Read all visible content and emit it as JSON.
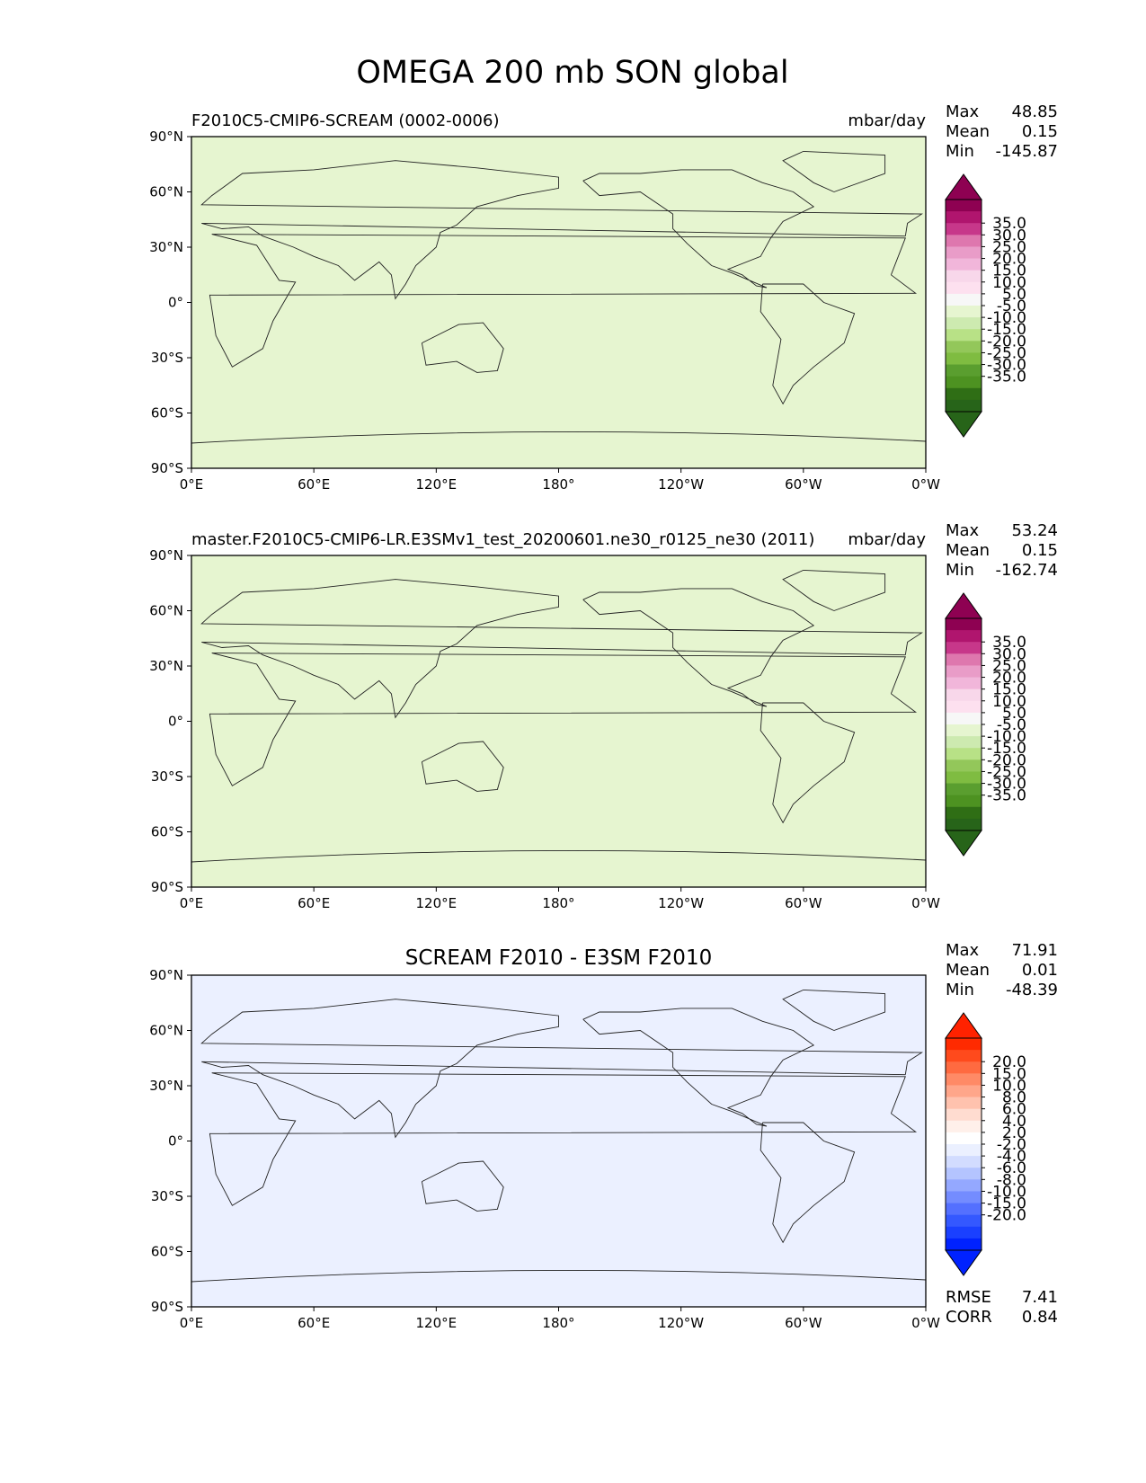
{
  "figure": {
    "title": "OMEGA 200 mb SON global"
  },
  "common": {
    "lon_ticks": [
      "0°E",
      "60°E",
      "120°E",
      "180°",
      "120°W",
      "60°W",
      "0°W"
    ],
    "lat_ticks": [
      "90°N",
      "60°N",
      "30°N",
      "0°",
      "30°S",
      "60°S",
      "90°S"
    ],
    "stat_labels": {
      "max": "Max",
      "mean": "Mean",
      "min": "Min",
      "rmse": "RMSE",
      "corr": "CORR"
    }
  },
  "panels": [
    {
      "id": "test",
      "left_title": "F2010C5-CMIP6-SCREAM (0002-0006)",
      "center_title": "",
      "units": "mbar/day",
      "stats": {
        "max": "48.85",
        "mean": "0.15",
        "min": "-145.87"
      },
      "colorbar": {
        "labels": [
          "35.0",
          "30.0",
          "25.0",
          "20.0",
          "15.0",
          "10.0",
          "5.0",
          "-5.0",
          "-10.0",
          "-15.0",
          "-20.0",
          "-25.0",
          "-30.0",
          "-35.0"
        ],
        "colors": [
          "#8e0152",
          "#b0156e",
          "#c7378a",
          "#de77ae",
          "#e99cc8",
          "#f1b6da",
          "#f8d7ea",
          "#fde0ef",
          "#f7f7f7",
          "#e6f5d0",
          "#cdeab0",
          "#b8e186",
          "#93c75a",
          "#7fbc41",
          "#5a9e2f",
          "#4d9221",
          "#2f6e15",
          "#276419"
        ],
        "top_arrow": "#8e0152",
        "bottom_arrow": "#276419"
      },
      "chart_data": {
        "type": "heatmap",
        "field": "OMEGA 200 mb SON",
        "units": "mbar/day",
        "lon_range": [
          0,
          360
        ],
        "lat_range": [
          -90,
          90
        ],
        "stats": {
          "max": 48.85,
          "mean": 0.15,
          "min": -145.87
        }
      }
    },
    {
      "id": "reference",
      "left_title": "master.F2010C5-CMIP6-LR.E3SMv1_test_20200601.ne30_r0125_ne30 (2011)",
      "center_title": "",
      "units": "mbar/day",
      "stats": {
        "max": "53.24",
        "mean": "0.15",
        "min": "-162.74"
      },
      "colorbar": {
        "labels": [
          "35.0",
          "30.0",
          "25.0",
          "20.0",
          "15.0",
          "10.0",
          "5.0",
          "-5.0",
          "-10.0",
          "-15.0",
          "-20.0",
          "-25.0",
          "-30.0",
          "-35.0"
        ],
        "colors": [
          "#8e0152",
          "#b0156e",
          "#c7378a",
          "#de77ae",
          "#e99cc8",
          "#f1b6da",
          "#f8d7ea",
          "#fde0ef",
          "#f7f7f7",
          "#e6f5d0",
          "#cdeab0",
          "#b8e186",
          "#93c75a",
          "#7fbc41",
          "#5a9e2f",
          "#4d9221",
          "#2f6e15",
          "#276419"
        ],
        "top_arrow": "#8e0152",
        "bottom_arrow": "#276419"
      },
      "chart_data": {
        "type": "heatmap",
        "field": "OMEGA 200 mb SON",
        "units": "mbar/day",
        "lon_range": [
          0,
          360
        ],
        "lat_range": [
          -90,
          90
        ],
        "stats": {
          "max": 53.24,
          "mean": 0.15,
          "min": -162.74
        }
      }
    },
    {
      "id": "diff",
      "left_title": "",
      "center_title": "SCREAM F2010 - E3SM F2010",
      "units": "",
      "stats": {
        "max": "71.91",
        "mean": "0.01",
        "min": "-48.39",
        "rmse": "7.41",
        "corr": "0.84"
      },
      "colorbar": {
        "labels": [
          "20.0",
          "15.0",
          "10.0",
          "8.0",
          "6.0",
          "4.0",
          "2.0",
          "-2.0",
          "-4.0",
          "-6.0",
          "-8.0",
          "-10.0",
          "-15.0",
          "-20.0"
        ],
        "colors": [
          "#ff2a00",
          "#ff4a1c",
          "#ff6a40",
          "#ff8a66",
          "#ffa68a",
          "#ffc2ae",
          "#ffdcd0",
          "#fff0ea",
          "#ffffff",
          "#ebf0ff",
          "#d2dcff",
          "#b4c4ff",
          "#94a8ff",
          "#748cff",
          "#5470ff",
          "#3458ff",
          "#1a40ff",
          "#0022ff"
        ],
        "top_arrow": "#ff2200",
        "bottom_arrow": "#0022ff"
      },
      "chart_data": {
        "type": "heatmap",
        "field": "OMEGA 200 mb SON difference",
        "lon_range": [
          0,
          360
        ],
        "lat_range": [
          -90,
          90
        ],
        "stats": {
          "max": 71.91,
          "mean": 0.01,
          "min": -48.39,
          "rmse": 7.41,
          "corr": 0.84
        }
      }
    }
  ]
}
